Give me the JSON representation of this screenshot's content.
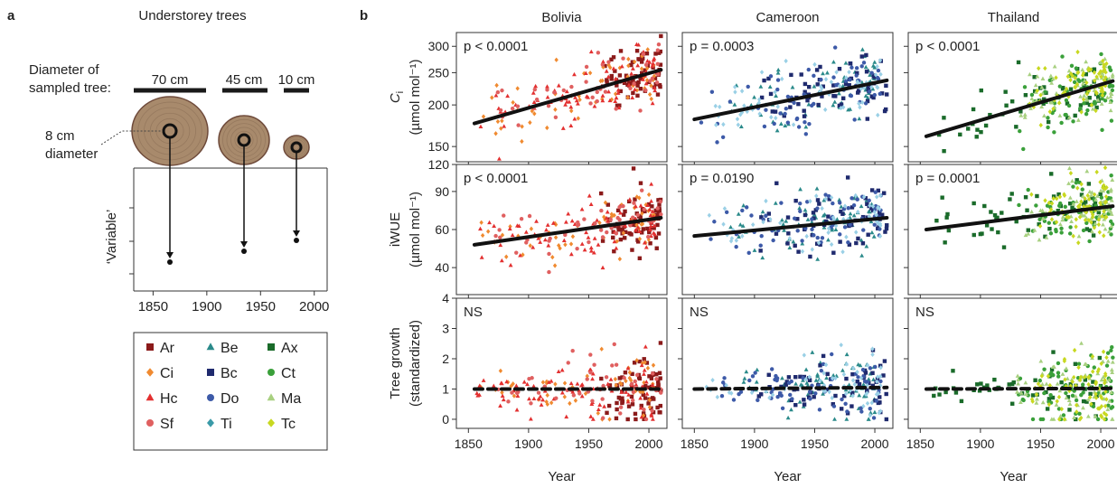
{
  "panel_a": {
    "label": "a",
    "title": "Understorey trees",
    "diam_label_1": "Diameter of",
    "diam_label_2": "sampled tree:",
    "sizes": [
      "70 cm",
      "45 cm",
      "10 cm"
    ],
    "core_label_1": "8 cm",
    "core_label_2": "diameter",
    "ylabel": "‘Variable’",
    "x_ticks": [
      "1850",
      "1900",
      "1950",
      "2000"
    ]
  },
  "legend": {
    "rows": [
      [
        {
          "code": "Ar",
          "marker": "square",
          "color": "#8b1a1a"
        },
        {
          "code": "Be",
          "marker": "triangle",
          "color": "#2a8a8a"
        },
        {
          "code": "Ax",
          "marker": "square",
          "color": "#1a6b2a"
        }
      ],
      [
        {
          "code": "Ci",
          "marker": "diamond",
          "color": "#f08a30"
        },
        {
          "code": "Bc",
          "marker": "square",
          "color": "#1f2a6e"
        },
        {
          "code": "Ct",
          "marker": "circle",
          "color": "#3aa03a"
        }
      ],
      [
        {
          "code": "Hc",
          "marker": "triangle",
          "color": "#e33030"
        },
        {
          "code": "Do",
          "marker": "circle",
          "color": "#3d5aa8"
        },
        {
          "code": "Ma",
          "marker": "triangle",
          "color": "#a8d080"
        }
      ],
      [
        {
          "code": "Sf",
          "marker": "circle",
          "color": "#e06060"
        },
        {
          "code": "Ti",
          "marker": "diamond",
          "color": "#3a9aa8"
        },
        {
          "code": "Tc",
          "marker": "diamond",
          "color": "#c8d820"
        }
      ]
    ]
  },
  "panel_b": {
    "label": "b",
    "x_label": "Year",
    "x_ticks": [
      "1850",
      "1900",
      "1950",
      "2000"
    ],
    "columns": [
      "Bolivia",
      "Cameroon",
      "Thailand"
    ],
    "row_labels": [
      {
        "main": "C",
        "sub": "i",
        "unit": "(µmol mol⁻¹)"
      },
      {
        "main": "iWUE",
        "sub": "",
        "unit": "(µmol mol⁻¹)"
      },
      {
        "main": "Tree growth",
        "sub": "",
        "unit": "(standardized)"
      }
    ],
    "row_ticks": [
      [
        "150",
        "200",
        "250",
        "300"
      ],
      [
        "40",
        "60",
        "90",
        "120"
      ],
      [
        "0",
        "1",
        "2",
        "3",
        "4"
      ]
    ],
    "stats": [
      [
        "p < 0.0001",
        "p = 0.0003",
        "p < 0.0001"
      ],
      [
        "p < 0.0001",
        "p = 0.0190",
        "p = 0.0001"
      ],
      [
        "NS",
        "NS",
        "NS"
      ]
    ]
  },
  "chart_data": [
    {
      "type": "scatter",
      "title": "Ci",
      "ylabel": "Ci (µmol mol⁻¹)",
      "xlim": [
        1840,
        2015
      ],
      "ylim": [
        135,
        330
      ],
      "log_y": true,
      "panels": [
        {
          "name": "Bolivia",
          "stat": "p < 0.0001",
          "trend": [
            [
              1855,
              176
            ],
            [
              2010,
              255
            ]
          ],
          "trend_style": "solid"
        },
        {
          "name": "Cameroon",
          "stat": "p = 0.0003",
          "trend": [
            [
              1850,
              181
            ],
            [
              2010,
              237
            ]
          ],
          "trend_style": "solid"
        },
        {
          "name": "Thailand",
          "stat": "p < 0.0001",
          "trend": [
            [
              1855,
              161
            ],
            [
              2010,
              236
            ]
          ],
          "trend_style": "solid"
        }
      ]
    },
    {
      "type": "scatter",
      "title": "iWUE",
      "ylabel": "iWUE (µmol mol⁻¹)",
      "xlim": [
        1840,
        2015
      ],
      "ylim": [
        30,
        120
      ],
      "log_y": true,
      "panels": [
        {
          "name": "Bolivia",
          "stat": "p < 0.0001",
          "trend": [
            [
              1855,
              51
            ],
            [
              2010,
              68
            ]
          ],
          "trend_style": "solid"
        },
        {
          "name": "Cameroon",
          "stat": "p = 0.0190",
          "trend": [
            [
              1850,
              56
            ],
            [
              2010,
              68
            ]
          ],
          "trend_style": "solid"
        },
        {
          "name": "Thailand",
          "stat": "p = 0.0001",
          "trend": [
            [
              1855,
              60
            ],
            [
              2010,
              77
            ]
          ],
          "trend_style": "solid"
        }
      ]
    },
    {
      "type": "scatter",
      "title": "Tree growth",
      "ylabel": "Tree growth (standardized)",
      "xlim": [
        1840,
        2015
      ],
      "ylim": [
        -0.3,
        4
      ],
      "panels": [
        {
          "name": "Bolivia",
          "stat": "NS",
          "trend": [
            [
              1855,
              1.0
            ],
            [
              2010,
              1.0
            ]
          ],
          "trend_style": "dashed"
        },
        {
          "name": "Cameroon",
          "stat": "NS",
          "trend": [
            [
              1850,
              1.0
            ],
            [
              2010,
              1.05
            ]
          ],
          "trend_style": "dashed"
        },
        {
          "name": "Thailand",
          "stat": "NS",
          "trend": [
            [
              1855,
              1.0
            ],
            [
              2010,
              1.02
            ]
          ],
          "trend_style": "dashed"
        }
      ]
    }
  ]
}
